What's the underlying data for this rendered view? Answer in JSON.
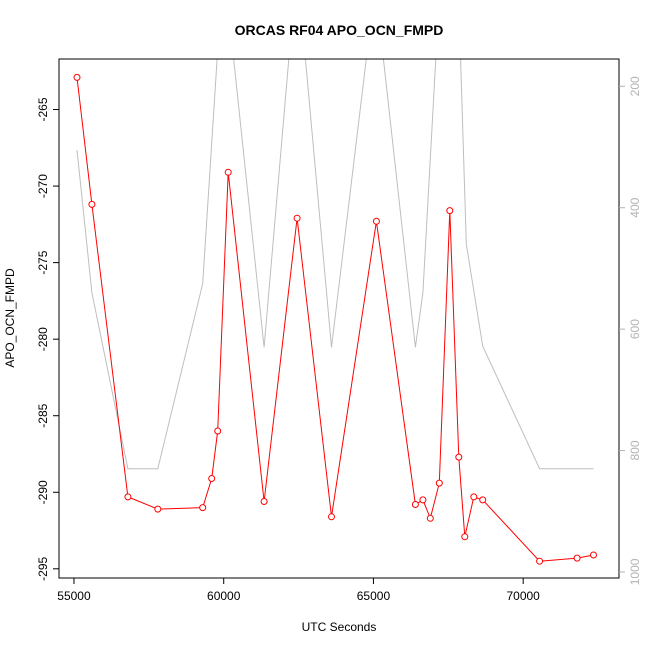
{
  "chart_data": {
    "type": "line",
    "title": "ORCAS RF04 APO_OCN_FMPD",
    "xlabel": "UTC Seconds",
    "ylabel": "APO_OCN_FMPD",
    "xlim": [
      54500,
      73200
    ],
    "ylim": [
      -295.6,
      -261.7
    ],
    "y2lim": [
      1010,
      155
    ],
    "x_ticks": [
      55000,
      60000,
      65000,
      70000
    ],
    "y_ticks": [
      -265,
      -270,
      -275,
      -280,
      -285,
      -290,
      -295
    ],
    "y2_ticks": [
      200,
      400,
      600,
      800,
      1000
    ],
    "colors": {
      "primary": "#ff0000",
      "secondary": "#bebebe",
      "axis": "#000000",
      "right_axis": "#b3b3b3"
    },
    "series": [
      {
        "values": [
          [
            55100,
            -262.9
          ],
          [
            55600,
            -271.2
          ],
          [
            56800,
            -290.3
          ],
          [
            57800,
            -291.1
          ],
          [
            59300,
            -291.0
          ],
          [
            59600,
            -289.1
          ],
          [
            59800,
            -286.0
          ],
          [
            60150,
            -269.1
          ],
          [
            61350,
            -290.6
          ],
          [
            62450,
            -272.1
          ],
          [
            63600,
            -291.6
          ],
          [
            65100,
            -272.3
          ],
          [
            66400,
            -290.8
          ],
          [
            66650,
            -290.5
          ],
          [
            66900,
            -291.7
          ],
          [
            67200,
            -289.4
          ],
          [
            67550,
            -271.6
          ],
          [
            67850,
            -287.7
          ],
          [
            68050,
            -292.9
          ],
          [
            68350,
            -290.3
          ],
          [
            68650,
            -290.5
          ],
          [
            70550,
            -294.5
          ],
          [
            71800,
            -294.3
          ],
          [
            72350,
            -294.1
          ]
        ]
      },
      {
        "axis": "right",
        "values": [
          [
            55100,
            305
          ],
          [
            55600,
            540
          ],
          [
            56800,
            830
          ],
          [
            57800,
            830
          ],
          [
            59300,
            525
          ],
          [
            59800,
            140
          ],
          [
            60300,
            140
          ],
          [
            61350,
            630
          ],
          [
            62200,
            140
          ],
          [
            62700,
            140
          ],
          [
            63600,
            630
          ],
          [
            64800,
            140
          ],
          [
            65300,
            140
          ],
          [
            66400,
            630
          ],
          [
            66650,
            540
          ],
          [
            67100,
            140
          ],
          [
            67550,
            140
          ],
          [
            67900,
            140
          ],
          [
            68100,
            460
          ],
          [
            68650,
            628
          ],
          [
            70550,
            830
          ],
          [
            71800,
            830
          ],
          [
            72350,
            830
          ]
        ]
      }
    ]
  }
}
